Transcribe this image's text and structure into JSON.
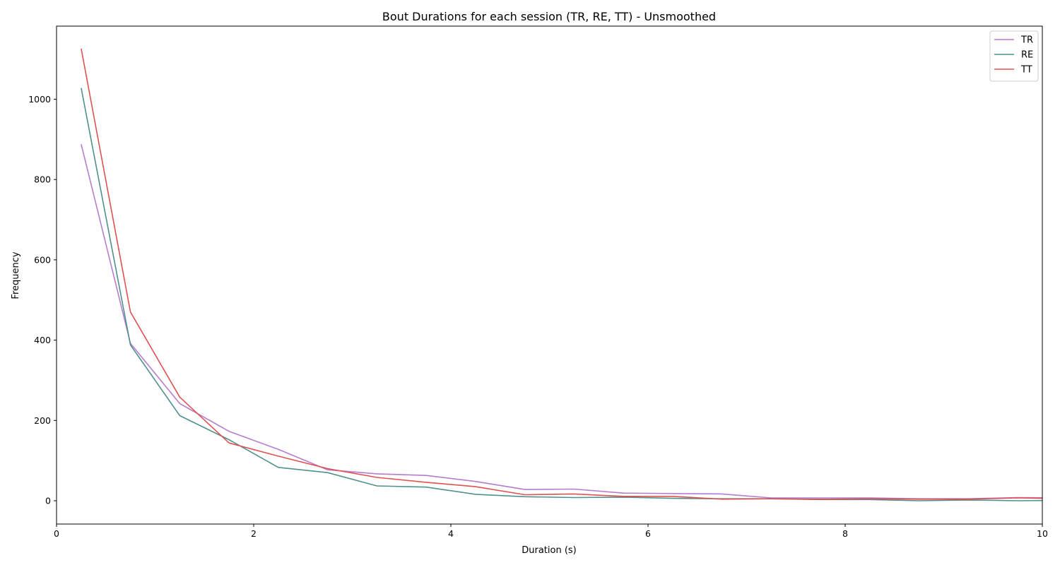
{
  "chart_data": {
    "type": "line",
    "title": "Bout Durations for each session (TR, RE, TT) - Unsmoothed",
    "xlabel": "Duration (s)",
    "ylabel": "Frequency",
    "xlim": [
      0,
      10
    ],
    "ylim": [
      -58,
      1182
    ],
    "xticks": [
      0,
      2,
      4,
      6,
      8,
      10
    ],
    "yticks": [
      0,
      200,
      400,
      600,
      800,
      1000
    ],
    "grid": false,
    "legend_position": "top-right",
    "x": [
      0.25,
      0.75,
      1.25,
      1.75,
      2.25,
      2.75,
      3.25,
      3.75,
      4.25,
      4.75,
      5.25,
      5.75,
      6.25,
      6.75,
      7.25,
      7.75,
      8.25,
      8.75,
      9.25,
      9.75,
      10.25
    ],
    "series": [
      {
        "name": "TR",
        "color": "#b57ccf",
        "values": [
          888,
          392,
          242,
          173,
          128,
          77,
          67,
          63,
          48,
          28,
          29,
          19,
          18,
          17,
          7,
          7,
          7,
          5,
          5,
          8,
          7
        ]
      },
      {
        "name": "RE",
        "color": "#4e918d",
        "values": [
          1028,
          388,
          212,
          152,
          83,
          70,
          37,
          34,
          16,
          10,
          8,
          9,
          6,
          5,
          5,
          3,
          3,
          0,
          2,
          0,
          1
        ]
      },
      {
        "name": "TT",
        "color": "#e05252",
        "values": [
          1126,
          470,
          258,
          144,
          111,
          80,
          58,
          46,
          35,
          15,
          17,
          11,
          11,
          4,
          5,
          4,
          5,
          4,
          4,
          7,
          5
        ]
      }
    ]
  }
}
